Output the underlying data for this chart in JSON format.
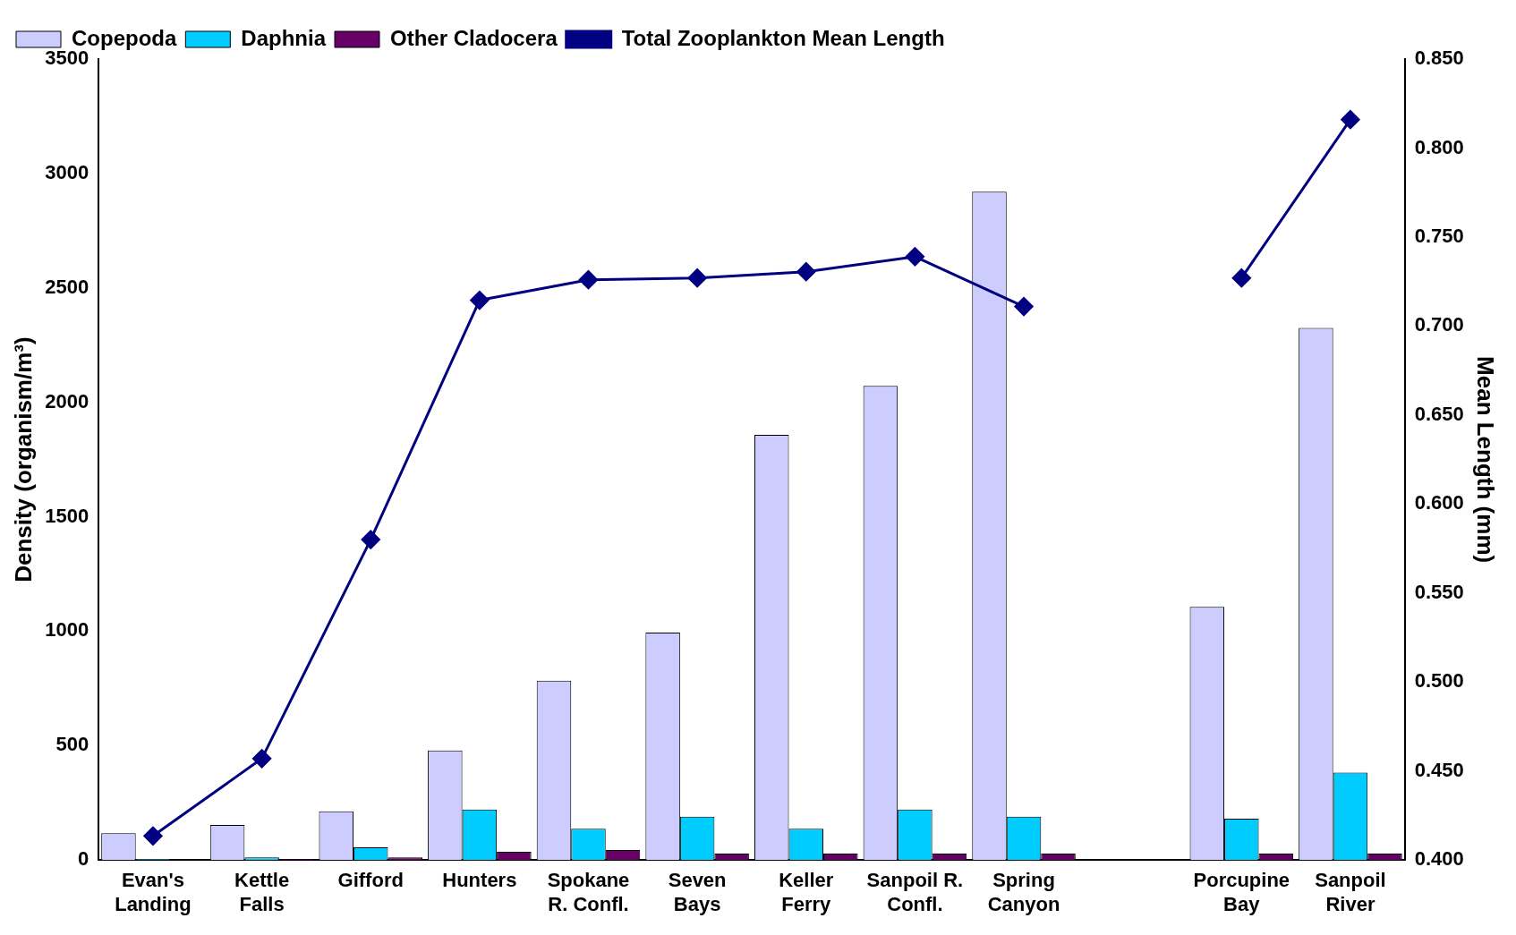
{
  "chart_data": {
    "type": "bar",
    "categories": [
      "Evan's\nLanding",
      "Kettle\nFalls",
      "Gifford",
      "Hunters",
      "Spokane\nR. Confl.",
      "Seven\nBays",
      "Keller\nFerry",
      "Sanpoil R.\nConfl.",
      "Spring\nCanyon",
      null,
      "Porcupine\nBay",
      "Sanpoil\nRiver"
    ],
    "series": [
      {
        "name": "Copepoda",
        "color": "#ccccff",
        "values": [
          117,
          153,
          213,
          479,
          784,
          994,
          1858,
          2072,
          2920,
          null,
          1106,
          2325
        ]
      },
      {
        "name": "Daphnia",
        "color": "#00ccff",
        "values": [
          5,
          12,
          56,
          221,
          137,
          189,
          137,
          221,
          189,
          null,
          181,
          382
        ]
      },
      {
        "name": "Other Cladocera",
        "color": "#660066",
        "values": [
          3,
          5,
          12,
          36,
          44,
          28,
          28,
          28,
          28,
          null,
          28,
          28
        ]
      },
      {
        "name": "Total Zooplankton Mean Length",
        "type": "line",
        "axis": "y2",
        "color": "#000080",
        "values": [
          0.4135,
          0.457,
          0.58,
          0.7145,
          0.726,
          0.727,
          0.7305,
          0.739,
          0.711,
          null,
          0.727,
          0.816
        ]
      }
    ],
    "ylabel": "Density (organism/m³)",
    "y2label": "Mean Length (mm)",
    "ylim": [
      0,
      3500
    ],
    "yticks": [
      0,
      500,
      1000,
      1500,
      2000,
      2500,
      3000,
      3500
    ],
    "y2lim": [
      0.4,
      0.85
    ],
    "y2ticks": [
      {
        "value": 0.4,
        "label": "0.400"
      },
      {
        "value": 0.45,
        "label": "0.450"
      },
      {
        "value": 0.5,
        "label": "0.500"
      },
      {
        "value": 0.55,
        "label": "0.550"
      },
      {
        "value": 0.6,
        "label": "0.600"
      },
      {
        "value": 0.65,
        "label": "0.650"
      },
      {
        "value": 0.7,
        "label": "0.700"
      },
      {
        "value": 0.75,
        "label": "0.750"
      },
      {
        "value": 0.8,
        "label": "0.800"
      },
      {
        "value": 0.85,
        "label": "0.850"
      }
    ],
    "grid": false,
    "legend": "top left",
    "marker": "diamond"
  }
}
